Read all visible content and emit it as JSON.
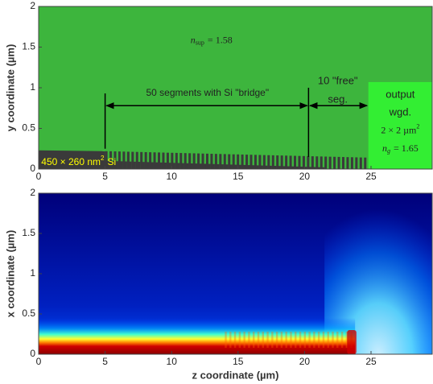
{
  "chart_data": [
    {
      "type": "structure",
      "ylabel": "y coordinate (µm)",
      "xlim": [
        0,
        29.6
      ],
      "ylim": [
        0,
        2
      ],
      "xticks": [
        0,
        5,
        10,
        15,
        20,
        25
      ],
      "yticks": [
        0,
        0.5,
        1,
        1.5,
        2
      ],
      "cladding_label": {
        "symbol": "n",
        "sub": "sup",
        "text": "= 1.58"
      },
      "core_label": {
        "text": "450 × 260 nm",
        "sup": "2",
        "tail": "Si"
      },
      "segments_label": "50 segments with Si \"bridge\"",
      "free_label": [
        "10 \"free\"",
        "seg."
      ],
      "output_label": [
        "output",
        "wgd."
      ],
      "output_size": {
        "text": "2 × 2 µm",
        "sup": "2"
      },
      "output_index": {
        "symbol": "n",
        "sub": "g",
        "text": "= 1.65"
      }
    },
    {
      "type": "heatmap",
      "xlabel": "z coordinate (µm)",
      "ylabel": "x coordinate (µm)",
      "xlim": [
        0,
        29.6
      ],
      "ylim": [
        0,
        2
      ],
      "xticks": [
        0,
        5,
        10,
        15,
        20,
        25
      ],
      "yticks": [
        0,
        0.5,
        1,
        1.5,
        2
      ]
    }
  ]
}
